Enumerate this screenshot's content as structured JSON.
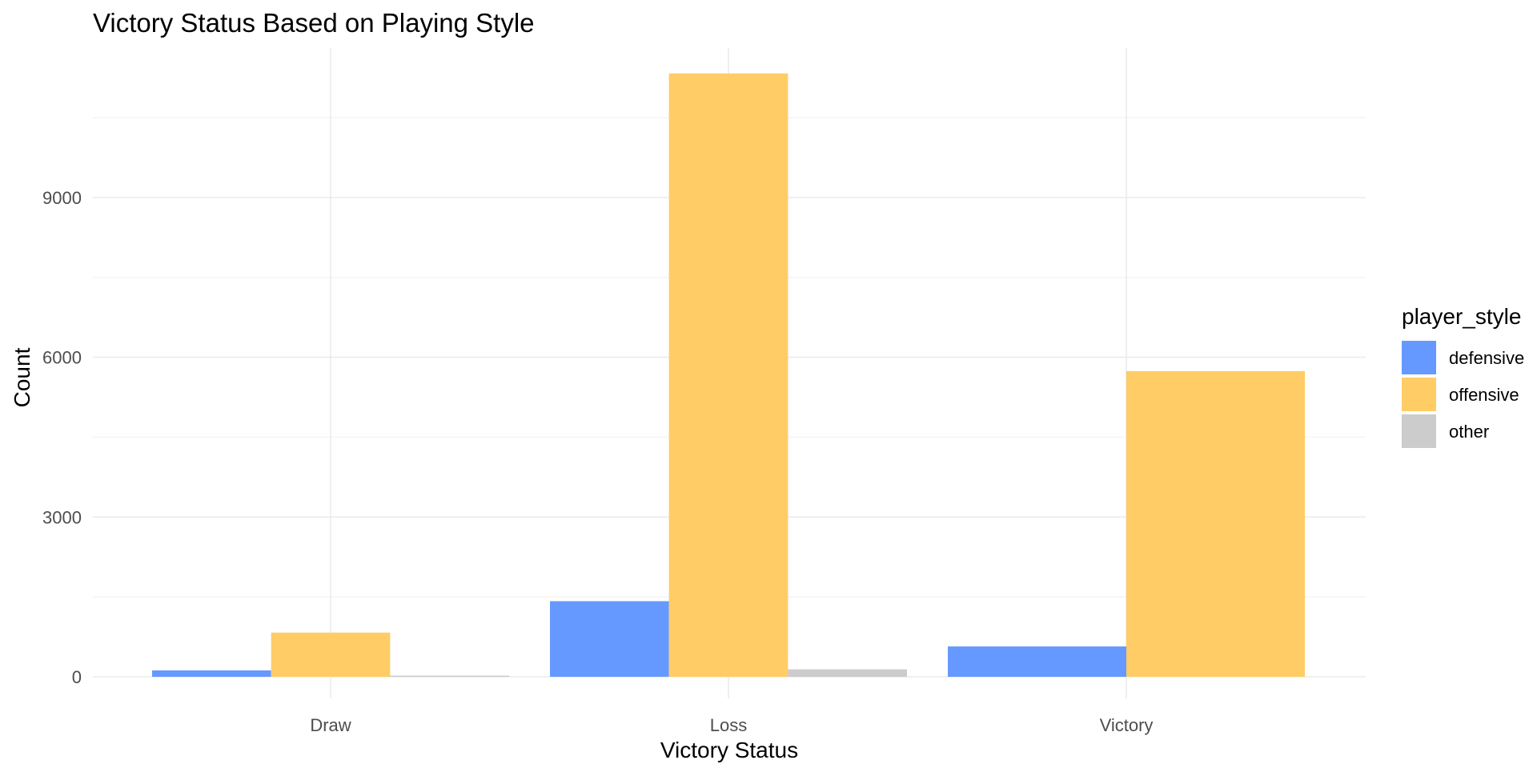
{
  "chart_data": {
    "type": "bar",
    "title": "Victory Status Based on Playing Style",
    "xlabel": "Victory Status",
    "ylabel": "Count",
    "categories": [
      "Draw",
      "Loss",
      "Victory"
    ],
    "series": [
      {
        "name": "defensive",
        "color": "#6699FF",
        "values": [
          120,
          1420,
          570
        ]
      },
      {
        "name": "offensive",
        "color": "#FFCC66",
        "values": [
          830,
          11330,
          5740
        ]
      },
      {
        "name": "other",
        "color": "#CCCCCC",
        "values": [
          20,
          140,
          0
        ]
      }
    ],
    "yticks": [
      0,
      3000,
      6000,
      9000
    ],
    "ylim": [
      -700,
      11900
    ],
    "grid": true,
    "legend": {
      "title": "player_style",
      "position": "right"
    }
  }
}
